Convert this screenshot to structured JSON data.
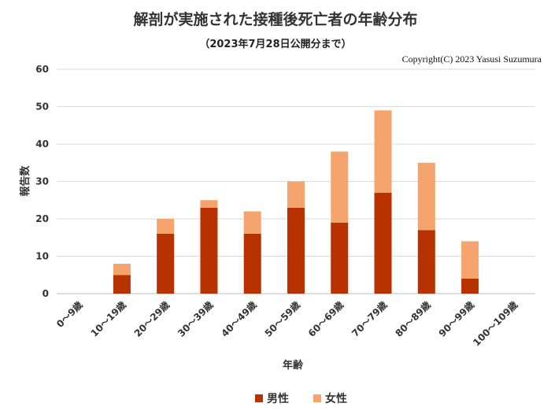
{
  "chart_data": {
    "type": "bar",
    "stacked": true,
    "title": "解剖が実施された接種後死亡者の年齢分布",
    "subtitle": "（2023年7月28日公開分まで）",
    "annotation": "Copyright(C)  2023 Yasusi Suzumura",
    "xlabel": "年齢",
    "ylabel": "報告数",
    "ylim": [
      0,
      60
    ],
    "yticks": [
      0,
      10,
      20,
      30,
      40,
      50,
      60
    ],
    "grid": true,
    "legend_position": "bottom",
    "categories": [
      "0～9歳",
      "10～19歳",
      "20～29歳",
      "30～39歳",
      "40～49歳",
      "50～59歳",
      "60～69歳",
      "70～79歳",
      "80～89歳",
      "90～99歳",
      "100～109歳"
    ],
    "series": [
      {
        "name": "男性",
        "color": "#b83200",
        "values": [
          0,
          5,
          16,
          23,
          16,
          23,
          19,
          27,
          17,
          4,
          0
        ]
      },
      {
        "name": "女性",
        "color": "#f4a46c",
        "values": [
          0,
          3,
          4,
          2,
          6,
          7,
          19,
          22,
          18,
          10,
          0
        ]
      }
    ]
  }
}
